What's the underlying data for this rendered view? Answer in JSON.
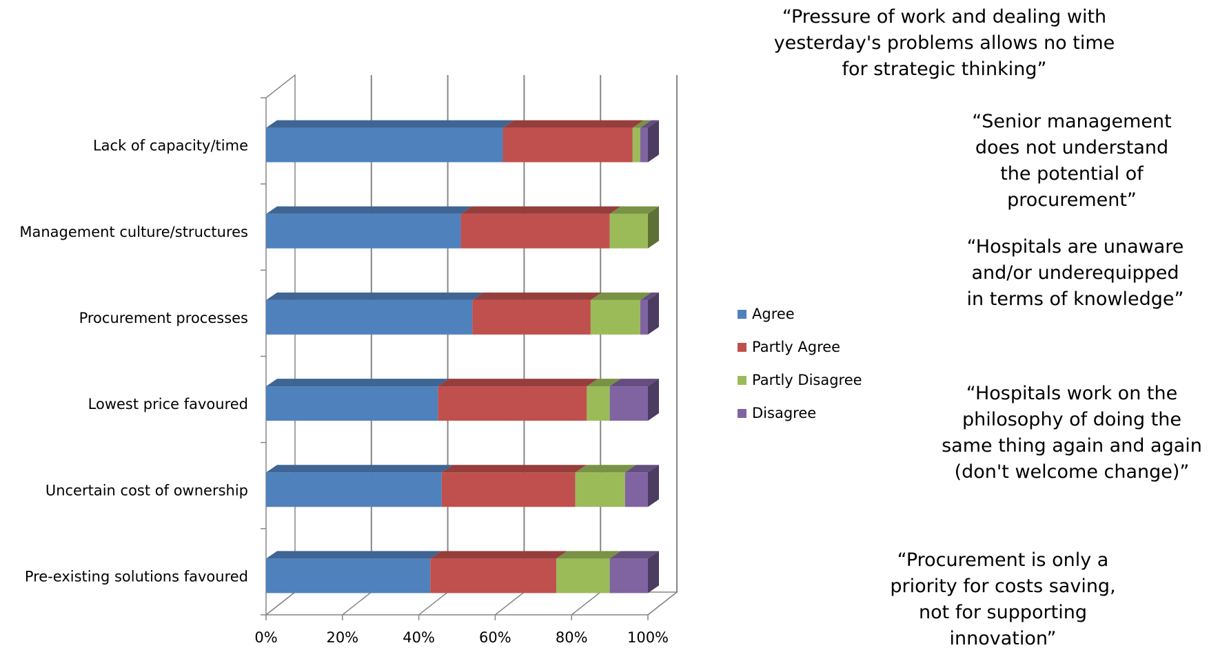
{
  "chart_data": {
    "type": "bar",
    "orientation": "horizontal",
    "stacked": "percent",
    "three_d": true,
    "categories": [
      "Lack of capacity/time",
      "Management culture/structures",
      "Procurement processes",
      "Lowest price favoured",
      "Uncertain cost of ownership",
      "Pre-existing solutions favoured"
    ],
    "series": [
      {
        "name": "Agree",
        "color": "#4F81BD",
        "values": [
          62,
          51,
          54,
          45,
          46,
          43
        ]
      },
      {
        "name": "Partly Agree",
        "color": "#C0504D",
        "values": [
          34,
          39,
          31,
          39,
          35,
          33
        ]
      },
      {
        "name": "Partly Disagree",
        "color": "#9BBB59",
        "values": [
          2,
          10,
          13,
          6,
          13,
          14
        ]
      },
      {
        "name": "Disagree",
        "color": "#8064A2",
        "values": [
          2,
          0,
          2,
          10,
          6,
          10
        ]
      }
    ],
    "xlim": [
      0,
      100
    ],
    "xticks": [
      "0%",
      "20%",
      "40%",
      "60%",
      "80%",
      "100%"
    ],
    "grid": true,
    "legend": "right"
  },
  "quotes": [
    "“Pressure of work and dealing with yesterday's problems allows no time for strategic thinking”",
    "“Senior management does not understand the potential of procurement”",
    "“Hospitals are unaware and/or underequipped in terms of knowledge”",
    "“Hospitals work on the philosophy of doing the same thing again and again (don't welcome change)”",
    "“Procurement is only a priority for costs saving, not for supporting innovation”"
  ]
}
